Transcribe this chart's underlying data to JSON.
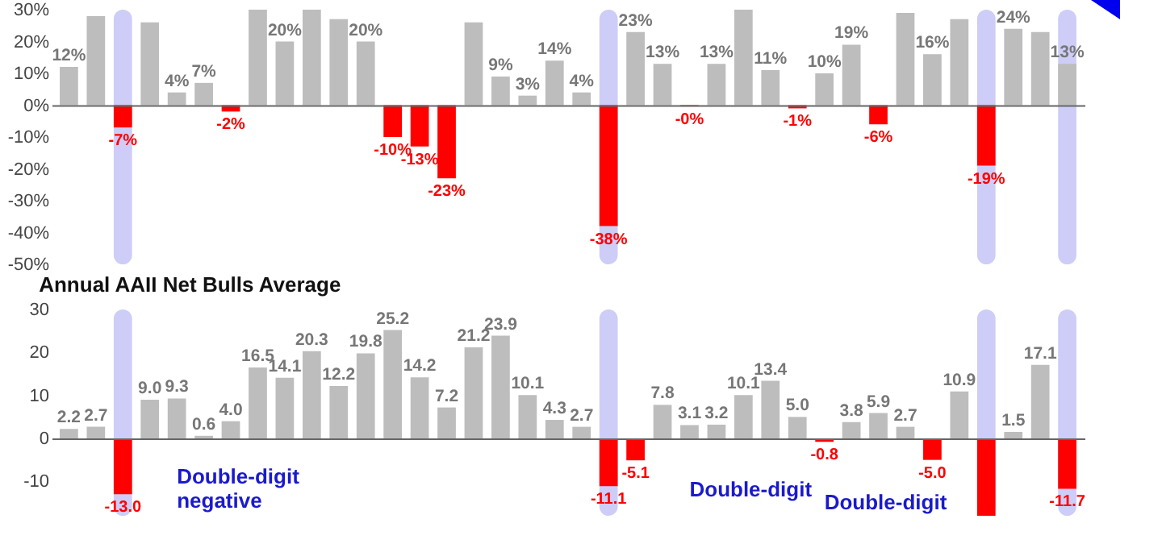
{
  "chart_data": [
    {
      "type": "bar",
      "categories": [
        null,
        null,
        null,
        null,
        null,
        null,
        null,
        null,
        null,
        null,
        null,
        null,
        null,
        null,
        null,
        null,
        null,
        null,
        null,
        null,
        null,
        null,
        null,
        null,
        null,
        null,
        null,
        null,
        null,
        null,
        null,
        null,
        null,
        null,
        null,
        null,
        null,
        null
      ],
      "tick_labels": "y",
      "values": [
        12,
        28,
        -7,
        26,
        4,
        7,
        -2,
        30,
        20,
        30,
        27,
        20,
        -10,
        -13,
        -23,
        26,
        9,
        3,
        14,
        4,
        -38,
        23,
        13,
        -0.4,
        13,
        30,
        11,
        -1,
        10,
        19,
        -6,
        29,
        16,
        27,
        -19,
        24,
        23,
        13
      ],
      "colors": [
        "#bdbdbd",
        "#bdbdbd",
        "#ff0000",
        "#bdbdbd",
        "#bdbdbd",
        "#bdbdbd",
        "#ff0000",
        "#bdbdbd",
        "#bdbdbd",
        "#bdbdbd",
        "#bdbdbd",
        "#bdbdbd",
        "#ff0000",
        "#ff0000",
        "#ff0000",
        "#bdbdbd",
        "#bdbdbd",
        "#bdbdbd",
        "#bdbdbd",
        "#bdbdbd",
        "#ff0000",
        "#bdbdbd",
        "#bdbdbd",
        "#ff0000",
        "#bdbdbd",
        "#bdbdbd",
        "#bdbdbd",
        "#ff0000",
        "#bdbdbd",
        "#bdbdbd",
        "#ff0000",
        "#bdbdbd",
        "#bdbdbd",
        "#bdbdbd",
        "#ff0000",
        "#bdbdbd",
        "#bdbdbd",
        "#bdbdbd"
      ],
      "value_labels": [
        "12%",
        null,
        "-7%",
        null,
        "4%",
        "7%",
        "-2%",
        null,
        "20%",
        null,
        null,
        "20%",
        "-10%",
        "-13%",
        "-23%",
        null,
        "9%",
        "3%",
        "14%",
        "4%",
        "-38%",
        "23%",
        "13%",
        "-0%",
        "13%",
        null,
        "11%",
        "-1%",
        "10%",
        "19%",
        "-6%",
        null,
        "16%",
        null,
        "-19%",
        "24%",
        null,
        "13%"
      ],
      "ylim": [
        -50,
        30
      ],
      "yticks": [
        {
          "value": -50,
          "label": "-50%"
        },
        {
          "value": -40,
          "label": "-40%"
        },
        {
          "value": -30,
          "label": "-30%"
        },
        {
          "value": -20,
          "label": "-20%"
        },
        {
          "value": -10,
          "label": "-10%"
        },
        {
          "value": 0,
          "label": "0%"
        },
        {
          "value": 10,
          "label": "10%"
        },
        {
          "value": 20,
          "label": "20%"
        },
        {
          "value": 30,
          "label": "30%"
        }
      ]
    },
    {
      "type": "bar",
      "title": "Annual AAII Net Bulls Average",
      "categories": [
        null,
        null,
        null,
        null,
        null,
        null,
        null,
        null,
        null,
        null,
        null,
        null,
        null,
        null,
        null,
        null,
        null,
        null,
        null,
        null,
        null,
        null,
        null,
        null,
        null,
        null,
        null,
        null,
        null,
        null,
        null,
        null,
        null,
        null,
        null,
        null,
        null,
        null
      ],
      "tick_labels": "y",
      "values": [
        2.2,
        2.7,
        -13.0,
        9.0,
        9.3,
        0.6,
        4.0,
        16.5,
        14.1,
        20.3,
        12.2,
        19.8,
        25.2,
        14.2,
        7.2,
        21.2,
        23.9,
        10.1,
        4.3,
        2.7,
        -11.1,
        -5.1,
        7.8,
        3.1,
        3.2,
        10.1,
        13.4,
        5.0,
        -0.8,
        3.8,
        5.9,
        2.7,
        -5.0,
        10.9,
        -18,
        1.5,
        17.1,
        -11.7
      ],
      "colors": [
        "#bdbdbd",
        "#bdbdbd",
        "#ff0000",
        "#bdbdbd",
        "#bdbdbd",
        "#bdbdbd",
        "#bdbdbd",
        "#bdbdbd",
        "#bdbdbd",
        "#bdbdbd",
        "#bdbdbd",
        "#bdbdbd",
        "#bdbdbd",
        "#bdbdbd",
        "#bdbdbd",
        "#bdbdbd",
        "#bdbdbd",
        "#bdbdbd",
        "#bdbdbd",
        "#bdbdbd",
        "#ff0000",
        "#ff0000",
        "#bdbdbd",
        "#bdbdbd",
        "#bdbdbd",
        "#bdbdbd",
        "#bdbdbd",
        "#bdbdbd",
        "#ff0000",
        "#bdbdbd",
        "#bdbdbd",
        "#bdbdbd",
        "#ff0000",
        "#bdbdbd",
        "#ff0000",
        "#bdbdbd",
        "#bdbdbd",
        "#ff0000"
      ],
      "value_labels": [
        "2.2",
        "2.7",
        "-13.0",
        "9.0",
        "9.3",
        "0.6",
        "4.0",
        "16.5",
        "14.1",
        "20.3",
        "12.2",
        "19.8",
        "25.2",
        "14.2",
        "7.2",
        "21.2",
        "23.9",
        "10.1",
        "4.3",
        "2.7",
        "-11.1",
        "-5.1",
        "7.8",
        "3.1",
        "3.2",
        "10.1",
        "13.4",
        "5.0",
        "-0.8",
        "3.8",
        "5.9",
        "2.7",
        "-5.0",
        "10.9",
        null,
        "1.5",
        "17.1",
        "-11.7"
      ],
      "ylim": [
        -18,
        30
      ],
      "yticks": [
        -10,
        0,
        10,
        20,
        30
      ],
      "annotations": [
        "Double-digit negative",
        "Double-digit",
        "Double-digit"
      ]
    }
  ]
}
